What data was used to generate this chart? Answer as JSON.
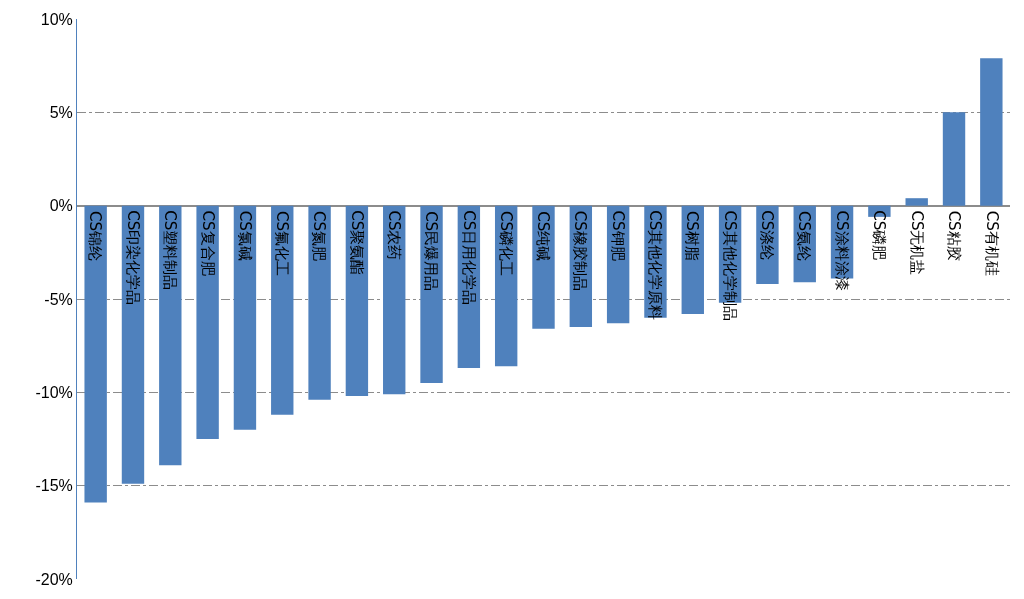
{
  "chart_data": {
    "type": "bar",
    "categories": [
      "CS锦纶",
      "CS印染化学品",
      "CS塑料制品",
      "CS复合肥",
      "CS氯碱",
      "CS氟化工",
      "CS氮肥",
      "CS聚氨酯",
      "CS农药",
      "CS民爆用品",
      "CS日用化学品",
      "CS磷化工",
      "CS纯碱",
      "CS橡胶制品",
      "CS钾肥",
      "CS其他化学原料",
      "CS树脂",
      "CS其他化学制品",
      "CS涤纶",
      "CS氨纶",
      "CS涂料涂漆",
      "CS磷肥",
      "CS无机盐",
      "CS粘胶",
      "CS有机硅"
    ],
    "values": [
      -15.9,
      -14.9,
      -13.9,
      -12.5,
      -12.0,
      -11.2,
      -10.4,
      -10.2,
      -10.1,
      -9.5,
      -8.7,
      -8.6,
      -6.6,
      -6.5,
      -6.3,
      -6.0,
      -5.8,
      -5.2,
      -4.2,
      -4.1,
      -3.9,
      -0.6,
      0.4,
      5.0,
      7.9
    ],
    "color": "#4f81bd",
    "ylim": [
      -20,
      10
    ],
    "yticks": [
      {
        "value": -20,
        "label": "-20%"
      },
      {
        "value": -15,
        "label": "-15%"
      },
      {
        "value": -10,
        "label": "-10%"
      },
      {
        "value": -5,
        "label": "-5%"
      },
      {
        "value": 0,
        "label": "0%"
      },
      {
        "value": 5,
        "label": "5%"
      },
      {
        "value": 10,
        "label": "10%"
      }
    ],
    "grid": "y"
  }
}
